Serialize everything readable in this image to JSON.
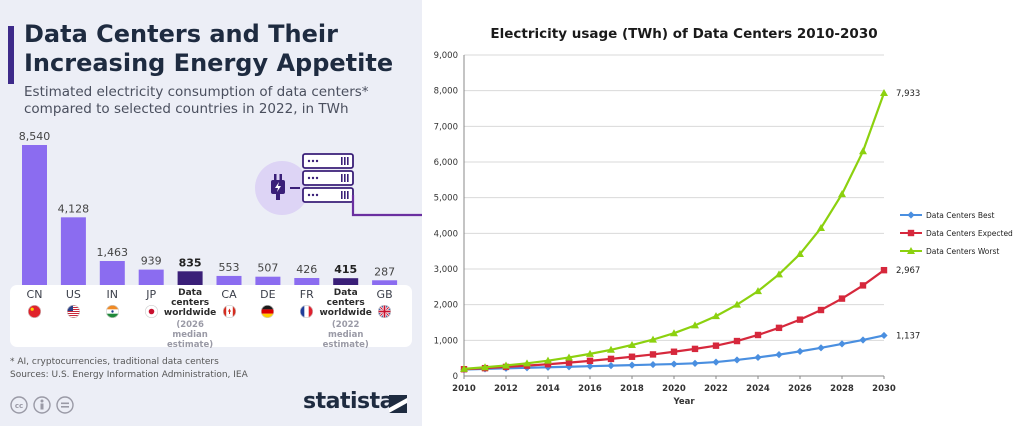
{
  "left_panel": {
    "title": "Data Centers and Their Increasing Energy Appetite",
    "subtitle": "Estimated electricity consumption of data centers* compared to selected countries in 2022, in TWh",
    "footnote": "* AI, cryptocurrencies, traditional data centers",
    "sources": "Sources: U.S. Energy Information Administration, IEA",
    "brand": "statista",
    "colors": {
      "bar": "#8b6cf0",
      "bar_highlight": "#3a1f78",
      "accent": "#3d2a8a",
      "background": "#eceef6"
    }
  },
  "chart_data": [
    {
      "type": "bar",
      "title": "Data Centers and Their Increasing Energy Appetite",
      "subtitle": "Estimated electricity consumption of data centers* compared to selected countries in 2022, in TWh",
      "categories": [
        {
          "code": "CN",
          "flag": "china-flag-icon"
        },
        {
          "code": "US",
          "flag": "usa-flag-icon"
        },
        {
          "code": "IN",
          "flag": "india-flag-icon"
        },
        {
          "code": "JP",
          "flag": "japan-flag-icon"
        },
        {
          "label_lines": [
            "Data",
            "centers",
            "worldwide"
          ],
          "note_lines": [
            "(2026 median",
            "estimate)"
          ]
        },
        {
          "code": "CA",
          "flag": "canada-flag-icon"
        },
        {
          "code": "DE",
          "flag": "germany-flag-icon"
        },
        {
          "code": "FR",
          "flag": "france-flag-icon"
        },
        {
          "label_lines": [
            "Data",
            "centers",
            "worldwide"
          ],
          "note_lines": [
            "(2022 median",
            "estimate)"
          ]
        },
        {
          "code": "GB",
          "flag": "uk-flag-icon"
        }
      ],
      "values": [
        8540,
        4128,
        1463,
        939,
        835,
        553,
        507,
        426,
        415,
        287
      ],
      "value_labels": [
        "8,540",
        "4,128",
        "1,463",
        "939",
        "835",
        "553",
        "507",
        "426",
        "415",
        "287"
      ],
      "highlight": [
        false,
        false,
        false,
        false,
        true,
        false,
        false,
        false,
        true,
        false
      ],
      "unit": "TWh"
    },
    {
      "type": "line",
      "title": "Electricity usage (TWh) of Data Centers 2010-2030",
      "xlabel": "Year",
      "ylabel": "",
      "x": [
        2010,
        2011,
        2012,
        2013,
        2014,
        2015,
        2016,
        2017,
        2018,
        2019,
        2020,
        2021,
        2022,
        2023,
        2024,
        2025,
        2026,
        2027,
        2028,
        2029,
        2030
      ],
      "xlim": [
        2010,
        2030
      ],
      "ylim": [
        0,
        9000
      ],
      "x_ticks": [
        2010,
        2012,
        2014,
        2016,
        2018,
        2020,
        2022,
        2024,
        2026,
        2028,
        2030
      ],
      "y_ticks": [
        0,
        1000,
        2000,
        3000,
        4000,
        5000,
        6000,
        7000,
        8000,
        9000
      ],
      "y_tick_labels": [
        "0",
        "1,000",
        "2,000",
        "3,000",
        "4,000",
        "5,000",
        "6,000",
        "7,000",
        "8,000",
        "9,000"
      ],
      "grid": "horizontal",
      "legend_position": "right",
      "series": [
        {
          "name": "Data Centers Best",
          "color": "#4a8fe0",
          "marker": "diamond",
          "end_label": "1,137",
          "values": [
            180,
            200,
            215,
            230,
            245,
            260,
            275,
            290,
            305,
            320,
            335,
            355,
            390,
            450,
            520,
            600,
            690,
            790,
            900,
            1010,
            1137
          ]
        },
        {
          "name": "Data Centers Expected",
          "color": "#d6283c",
          "marker": "square",
          "end_label": "2,967",
          "values": [
            190,
            220,
            255,
            290,
            330,
            375,
            425,
            480,
            540,
            605,
            680,
            760,
            850,
            980,
            1150,
            1350,
            1580,
            1850,
            2170,
            2540,
            2967
          ]
        },
        {
          "name": "Data Centers Worst",
          "color": "#8cd10f",
          "marker": "triangle",
          "end_label": "7,933",
          "values": [
            200,
            245,
            295,
            355,
            430,
            520,
            620,
            735,
            870,
            1020,
            1200,
            1420,
            1680,
            2000,
            2380,
            2850,
            3420,
            4150,
            5100,
            6300,
            7933
          ]
        }
      ]
    }
  ]
}
